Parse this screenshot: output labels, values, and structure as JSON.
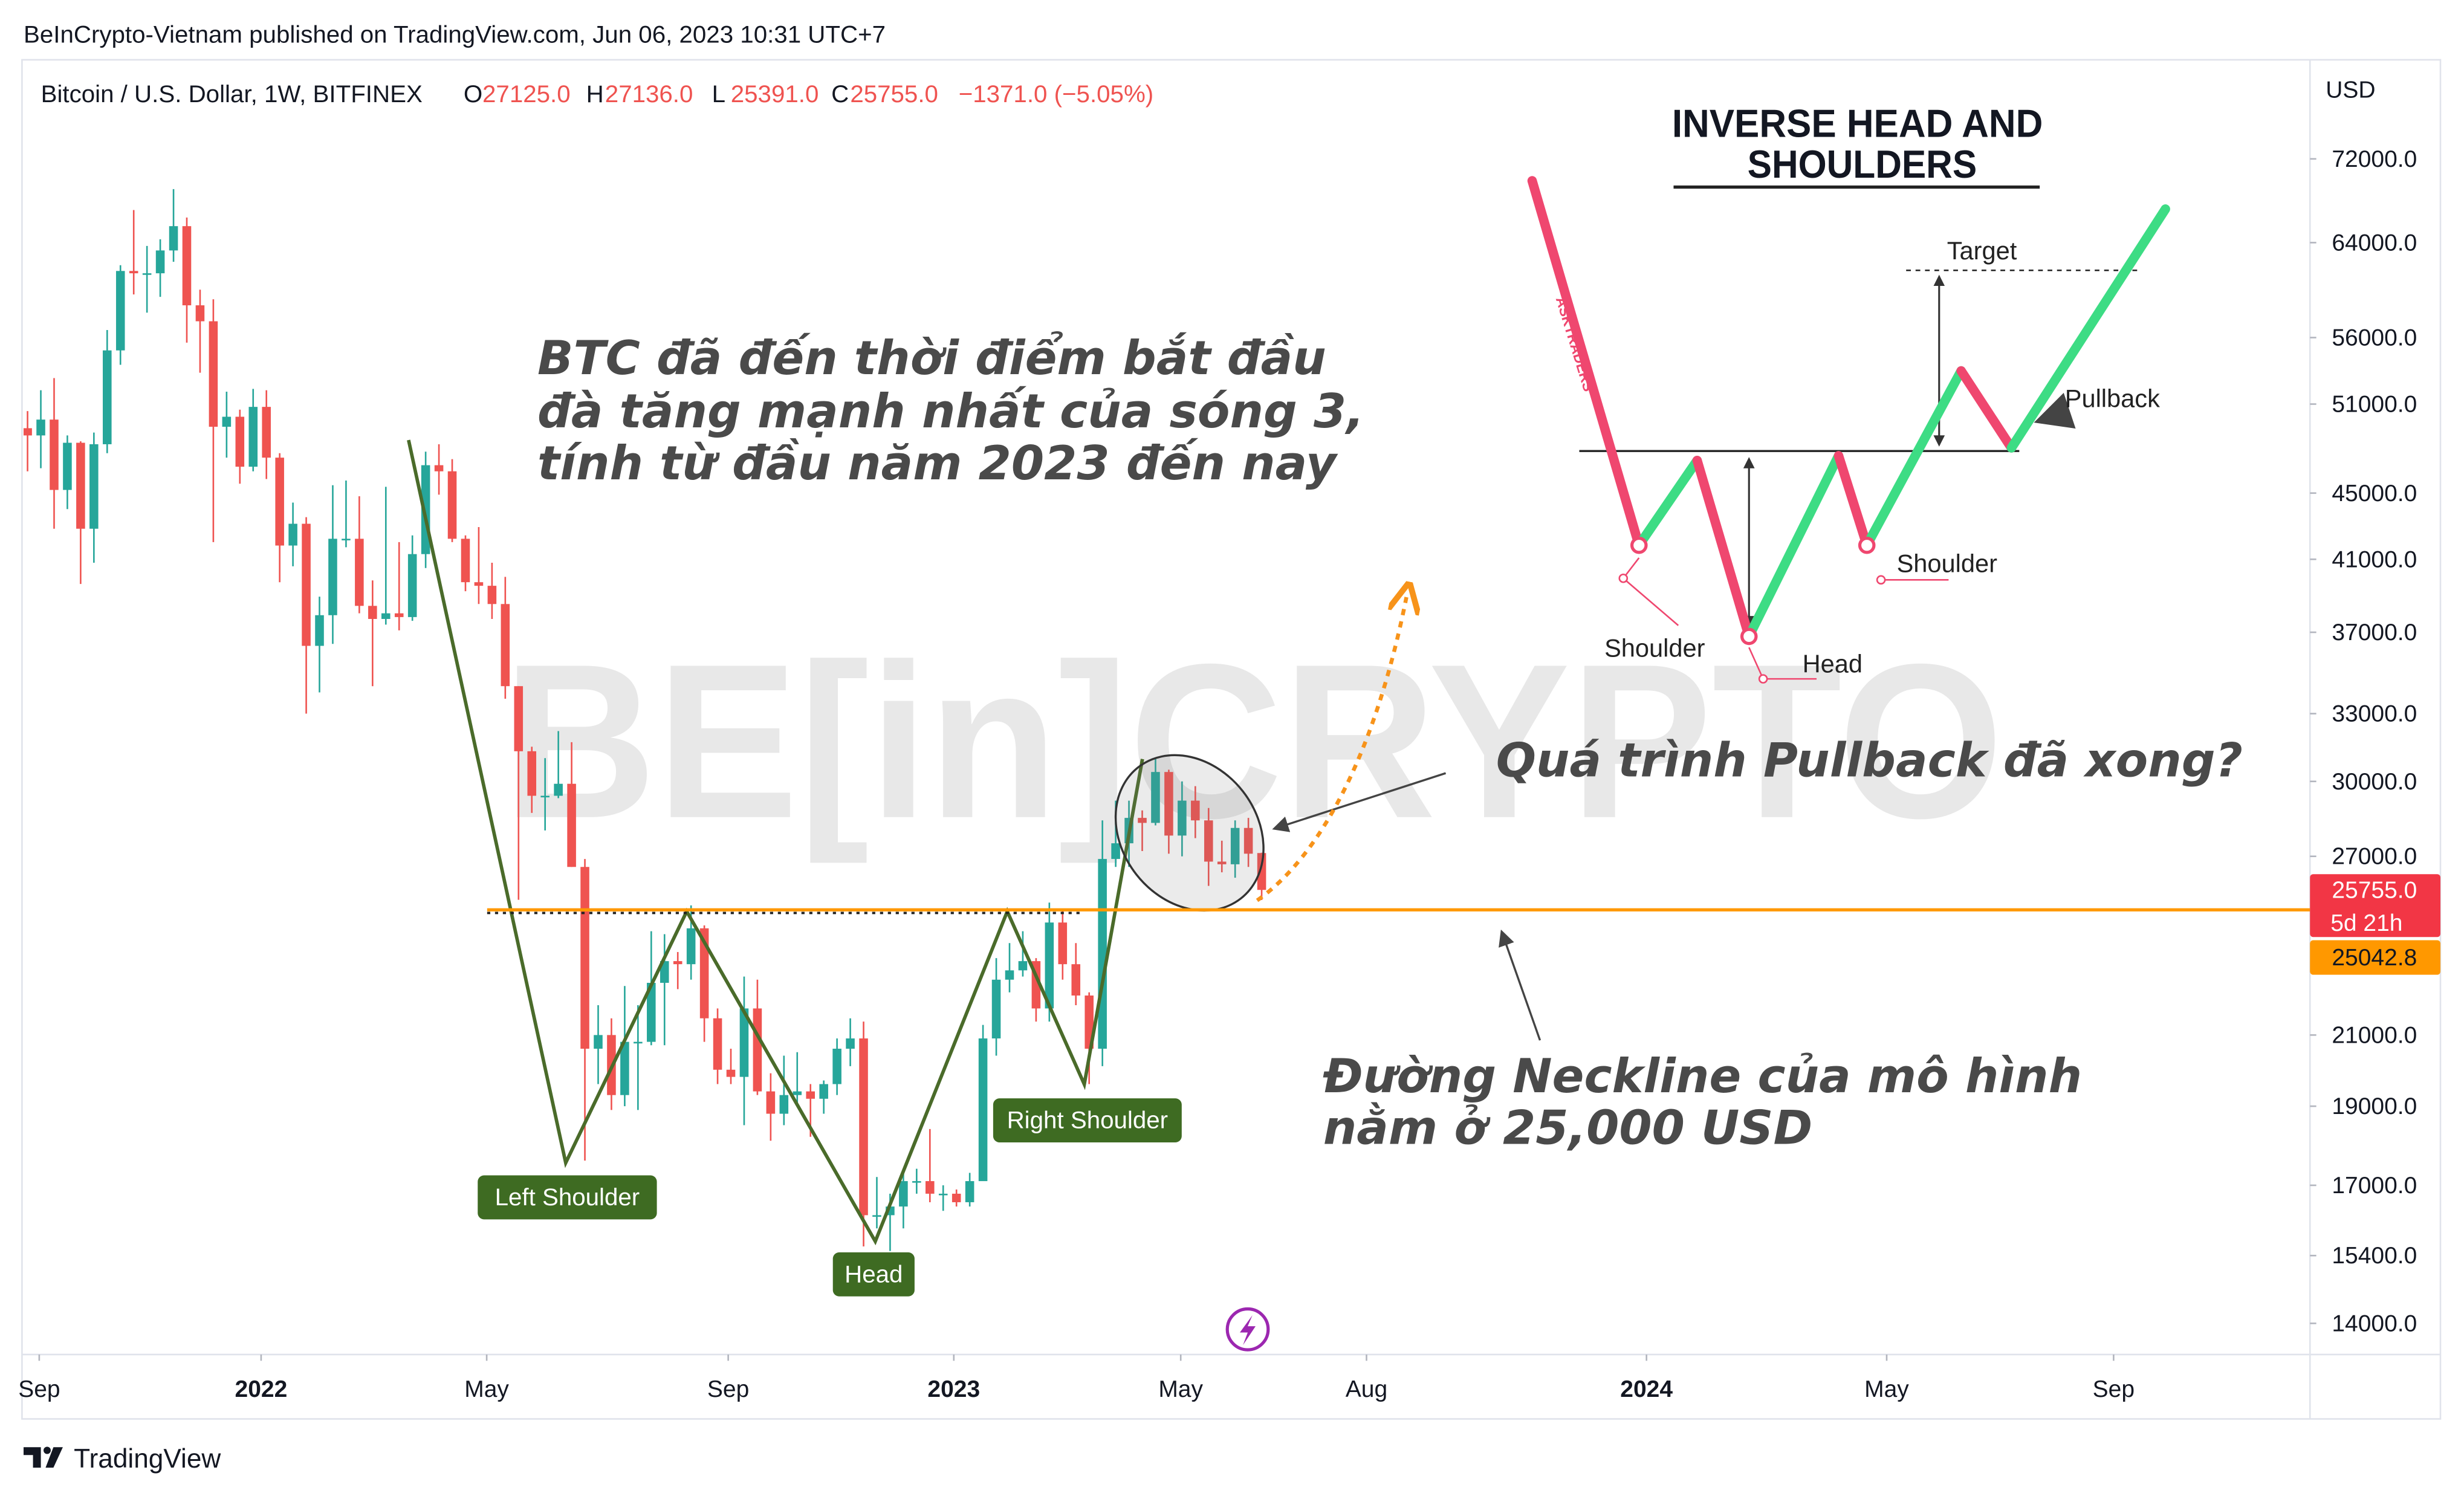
{
  "header": "BeInCrypto-Vietnam published on TradingView.com, Jun 06, 2023 10:31 UTC+7",
  "chart_data": {
    "type": "candlestick",
    "symbol": "Bitcoin / U.S. Dollar, 1W, BITFINEX",
    "ohlc_legend": [
      [
        "O",
        "27125.0"
      ],
      [
        "H",
        "27136.0"
      ],
      [
        "L",
        "25391.0"
      ],
      [
        "C",
        "25755.0"
      ]
    ],
    "change": "−1371.0 (−5.05%)",
    "axis_label": "USD",
    "log_scale": true,
    "grid": false,
    "up_color": "#26a69a",
    "down_color": "#ef5350",
    "xlim": [
      -0.3,
      172
    ],
    "xticks": [
      {
        "value": 0.88,
        "label": "Sep"
      },
      {
        "value": 17.6,
        "label": "2022"
      },
      {
        "value": 34.6,
        "label": "May"
      },
      {
        "value": 52.8,
        "label": "Sep"
      },
      {
        "value": 69.8,
        "label": "2023"
      },
      {
        "value": 86.9,
        "label": "May"
      },
      {
        "value": 100.9,
        "label": "Aug"
      },
      {
        "value": 122,
        "label": "2024"
      },
      {
        "value": 140.1,
        "label": "May"
      },
      {
        "value": 157.2,
        "label": "Sep"
      }
    ],
    "ylim": [
      13400,
      82400
    ],
    "yticks": [
      {
        "value": 72000,
        "label": "72000.0"
      },
      {
        "value": 64000,
        "label": "64000.0"
      },
      {
        "value": 56000,
        "label": "56000.0"
      },
      {
        "value": 51000,
        "label": "51000.0"
      },
      {
        "value": 45000,
        "label": "45000.0"
      },
      {
        "value": 41000,
        "label": "41000.0"
      },
      {
        "value": 37000,
        "label": "37000.0"
      },
      {
        "value": 33000,
        "label": "33000.0"
      },
      {
        "value": 30000,
        "label": "30000.0"
      },
      {
        "value": 27000,
        "label": "27000.0"
      },
      {
        "value": 21000,
        "label": "21000.0"
      },
      {
        "value": 19000,
        "label": "19000.0"
      },
      {
        "value": 17000,
        "label": "17000.0"
      },
      {
        "value": 15400,
        "label": "15400.0"
      },
      {
        "value": 14000,
        "label": "14000.0"
      }
    ],
    "open": [
      49300,
      48800,
      49900,
      45200,
      48300,
      42800,
      48200,
      55000,
      61500,
      61300,
      61300,
      63300,
      65500,
      58600,
      57300,
      49400,
      50100,
      46700,
      50800,
      47300,
      41800,
      43100,
      36300,
      37900,
      42200,
      42200,
      38400,
      37700,
      38000,
      37800,
      41300,
      46800,
      46400,
      42200,
      39700,
      39500,
      38500,
      34300,
      31300,
      29400,
      29400,
      29900,
      26600,
      20600,
      21000,
      19300,
      20800,
      20800,
      22600,
      23300,
      23200,
      24400,
      21500,
      20000,
      19800,
      21800,
      19400,
      18800,
      19300,
      19400,
      19200,
      19600,
      20600,
      20900,
      16300,
      16300,
      16500,
      17100,
      17100,
      16800,
      16800,
      16600,
      17100,
      20900,
      22700,
      23000,
      23300,
      21800,
      24600,
      23200,
      22200,
      20600,
      26900,
      27500,
      28500,
      28300,
      30400,
      27800,
      29200,
      28400,
      26800,
      26700,
      28100,
      27125
    ],
    "high": [
      50500,
      52000,
      52900,
      48800,
      48400,
      49000,
      56600,
      62000,
      67000,
      63700,
      64300,
      69000,
      66300,
      59900,
      59100,
      51900,
      50600,
      52100,
      52000,
      47600,
      44400,
      43500,
      38900,
      45500,
      45800,
      44800,
      39800,
      45400,
      42000,
      42400,
      47700,
      48200,
      47200,
      42400,
      42900,
      40800,
      40000,
      34300,
      31500,
      31000,
      32200,
      31700,
      26900,
      21900,
      21500,
      22500,
      21900,
      24300,
      24200,
      23600,
      25200,
      24500,
      21800,
      20600,
      22800,
      22700,
      19900,
      20400,
      20500,
      19600,
      19700,
      20900,
      21500,
      21400,
      17200,
      16800,
      17400,
      17400,
      18400,
      17000,
      16900,
      17300,
      21300,
      23400,
      23900,
      24300,
      23400,
      25300,
      25000,
      23900,
      22300,
      28400,
      29200,
      29200,
      28800,
      31000,
      30500,
      30000,
      29800,
      28900,
      27600,
      28400,
      28500,
      27136
    ],
    "low": [
      46400,
      46600,
      42800,
      44000,
      39600,
      40800,
      47600,
      53900,
      59500,
      58000,
      59300,
      62300,
      55600,
      53300,
      42000,
      47300,
      45600,
      46400,
      45900,
      39700,
      40600,
      33000,
      34000,
      36400,
      41700,
      38000,
      34300,
      37400,
      37100,
      37600,
      40500,
      44900,
      42000,
      39200,
      38500,
      37700,
      33700,
      25400,
      28700,
      28000,
      29300,
      26600,
      17600,
      19600,
      18900,
      19000,
      18900,
      20700,
      20700,
      22400,
      22700,
      20800,
      19600,
      19600,
      18500,
      19300,
      18100,
      18500,
      19000,
      18200,
      18800,
      19300,
      20100,
      15600,
      16000,
      15500,
      16000,
      16800,
      16600,
      16400,
      16500,
      16500,
      17100,
      20400,
      22300,
      22800,
      21400,
      21400,
      22700,
      21900,
      19600,
      20100,
      26600,
      26600,
      27200,
      28200,
      27100,
      27000,
      27700,
      25900,
      26400,
      26200,
      26600,
      25391
    ],
    "close": [
      48800,
      49900,
      45200,
      48300,
      42800,
      48200,
      55000,
      61500,
      61300,
      61300,
      63300,
      65500,
      58600,
      57300,
      49400,
      50100,
      46700,
      50800,
      47300,
      41800,
      43100,
      36300,
      37900,
      42200,
      42200,
      38400,
      37700,
      38000,
      37800,
      41300,
      46800,
      46400,
      42200,
      39700,
      39500,
      38500,
      34300,
      31300,
      29400,
      29400,
      29900,
      26600,
      20600,
      21000,
      19300,
      20800,
      20800,
      22600,
      23300,
      23200,
      24400,
      21500,
      20000,
      19800,
      21800,
      19400,
      18800,
      19300,
      19400,
      19200,
      19600,
      20600,
      20900,
      16300,
      16300,
      16500,
      17100,
      17100,
      16800,
      16800,
      16600,
      17100,
      20900,
      22700,
      23000,
      23300,
      21800,
      24600,
      23200,
      22200,
      20600,
      26900,
      27500,
      28500,
      28300,
      30400,
      27800,
      29200,
      28400,
      26800,
      26700,
      28100,
      27100,
      25755
    ],
    "last_price": {
      "value": 25755,
      "label": "25755.0",
      "countdown": "5d 21h",
      "color": "#f23645"
    },
    "neckline": {
      "value": 25042.8,
      "label": "25042.8",
      "color": "#ff9800"
    },
    "annotations": {
      "main": [
        "BTC đã đến thời điểm bắt đầu",
        "đà tăng mạnh nhất của sóng 3,",
        "tính từ đầu năm 2023 đến nay"
      ],
      "pullback": "Quá trình Pullback đã xong?",
      "neckline": [
        "Đường Neckline của mô hình",
        "nằm ở 25,000 USD"
      ]
    },
    "pattern_labels": [
      "Left Shoulder",
      "Head",
      "Right Shoulder"
    ]
  },
  "inset": {
    "title": [
      "INVERSE HEAD AND",
      "SHOULDERS"
    ],
    "brand": "ASKTRADERS",
    "target": "Target",
    "pullback": "Pullback",
    "left_shoulder": "Shoulder",
    "head": "Head",
    "right_shoulder": "Shoulder"
  },
  "watermark": "BE[in]CRYPTO",
  "footer": "TradingView"
}
